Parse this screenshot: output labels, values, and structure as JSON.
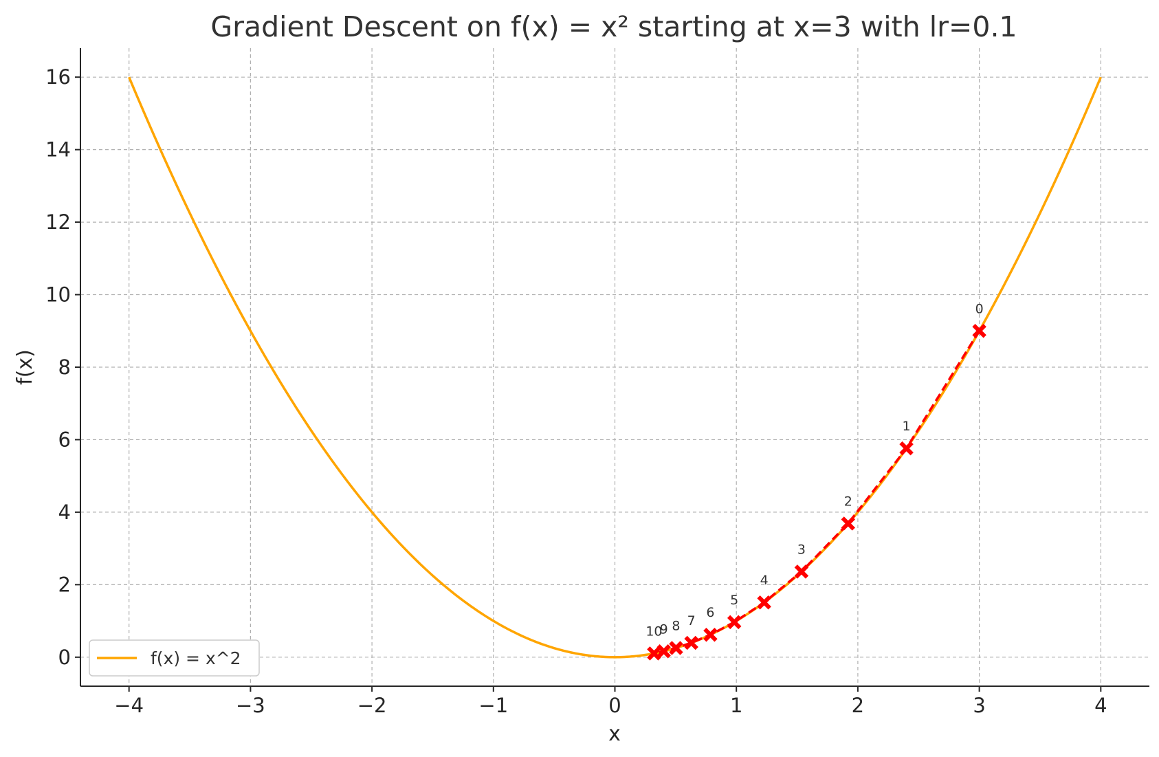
{
  "chart_data": {
    "type": "line",
    "title": "Gradient Descent on f(x) = x² starting at x=3 with lr=0.1",
    "xlabel": "x",
    "ylabel": "f(x)",
    "xlim": [
      -4.4,
      4.4
    ],
    "ylim": [
      -0.8,
      16.8
    ],
    "x_ticks": [
      -4,
      -3,
      -2,
      -1,
      0,
      1,
      2,
      3,
      4
    ],
    "x_tick_labels": [
      "−4",
      "−3",
      "−2",
      "−1",
      "0",
      "1",
      "2",
      "3",
      "4"
    ],
    "y_ticks": [
      0,
      2,
      4,
      6,
      8,
      10,
      12,
      14,
      16
    ],
    "y_tick_labels": [
      "0",
      "2",
      "4",
      "6",
      "8",
      "10",
      "12",
      "14",
      "16"
    ],
    "grid": true,
    "legend": {
      "placement": "lower-left",
      "entries": [
        "f(x) = x^2"
      ]
    },
    "function_curve": {
      "name": "f(x) = x^2",
      "color": "#FFA500",
      "x_range": [
        -4,
        4
      ]
    },
    "descent_path": {
      "color": "#FF0000",
      "style": "dashed",
      "marker": "x",
      "steps": [
        0,
        1,
        2,
        3,
        4,
        5,
        6,
        7,
        8,
        9,
        10
      ],
      "x": [
        3.0,
        2.4,
        1.92,
        1.536,
        1.2288,
        0.98304,
        0.786432,
        0.629146,
        0.503316,
        0.402653,
        0.322123
      ],
      "y": [
        9.0,
        5.76,
        3.6864,
        2.3593,
        1.51,
        0.9664,
        0.6185,
        0.3958,
        0.2533,
        0.1621,
        0.1038
      ]
    }
  }
}
